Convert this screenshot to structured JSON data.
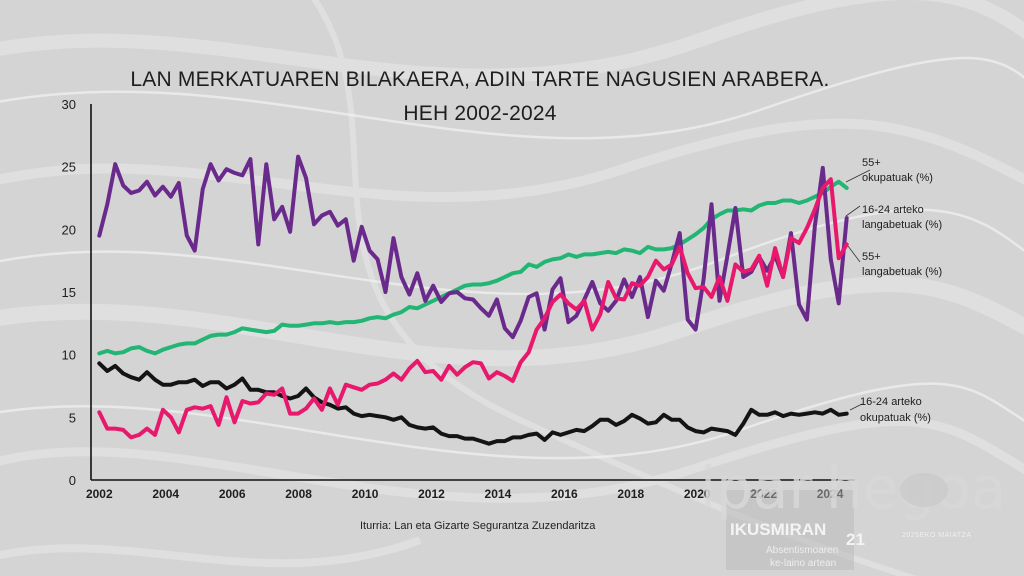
{
  "chart_data": {
    "type": "line",
    "title": [
      "LAN MERKATUAREN BILAKAERA, ADIN TARTE NAGUSIEN ARABERA.",
      "HEH 2002-2024"
    ],
    "xlim": [
      2001.75,
      2024.75
    ],
    "ylim": [
      0,
      30
    ],
    "y_ticks": [
      0,
      5,
      10,
      15,
      20,
      25,
      30
    ],
    "x_ticks": [
      2002,
      2004,
      2006,
      2008,
      2010,
      2012,
      2014,
      2016,
      2018,
      2020,
      2022,
      2024
    ],
    "grid": false,
    "legend": "right, labels at line ends",
    "series": [
      {
        "name": [
          "16-24 arteko",
          "okupatuak (%)"
        ],
        "color": "#141414",
        "values": [
          9.3,
          8.7,
          9.1,
          8.5,
          8.2,
          8.0,
          8.6,
          8.0,
          7.6,
          7.6,
          7.8,
          7.8,
          8.0,
          7.5,
          7.8,
          7.8,
          7.3,
          7.6,
          8.1,
          7.2,
          7.2,
          7.0,
          7.0,
          6.7,
          6.5,
          6.7,
          7.3,
          6.6,
          6.2,
          6.0,
          5.7,
          5.8,
          5.3,
          5.1,
          5.2,
          5.1,
          5.0,
          4.8,
          5.0,
          4.4,
          4.2,
          4.1,
          4.2,
          3.7,
          3.5,
          3.5,
          3.3,
          3.3,
          3.1,
          2.9,
          3.1,
          3.1,
          3.4,
          3.4,
          3.6,
          3.7,
          3.2,
          3.8,
          3.6,
          3.8,
          4.0,
          3.9,
          4.3,
          4.8,
          4.8,
          4.4,
          4.7,
          5.2,
          4.9,
          4.5,
          4.6,
          5.2,
          4.8,
          4.8,
          4.2,
          3.9,
          3.8,
          4.1,
          4.0,
          3.9,
          3.6,
          4.5,
          5.6,
          5.2,
          5.2,
          5.4,
          5.1,
          5.3,
          5.2,
          5.3,
          5.4,
          5.3,
          5.6,
          5.2,
          5.3
        ]
      },
      {
        "name": [
          "55+",
          "okupatuak (%)"
        ],
        "color": "#22b573",
        "values": [
          10.1,
          10.3,
          10.1,
          10.2,
          10.5,
          10.6,
          10.3,
          10.1,
          10.4,
          10.6,
          10.8,
          10.9,
          10.9,
          11.2,
          11.5,
          11.6,
          11.6,
          11.8,
          12.1,
          12.0,
          11.9,
          11.8,
          11.9,
          12.4,
          12.3,
          12.3,
          12.4,
          12.5,
          12.5,
          12.6,
          12.5,
          12.6,
          12.6,
          12.7,
          12.9,
          13.0,
          12.9,
          13.2,
          13.4,
          13.8,
          13.7,
          14.0,
          14.3,
          14.6,
          14.9,
          15.2,
          15.5,
          15.6,
          15.6,
          15.7,
          15.9,
          16.2,
          16.5,
          16.6,
          17.2,
          17.0,
          17.4,
          17.6,
          17.7,
          18.0,
          17.8,
          18.0,
          18.0,
          18.1,
          18.2,
          18.1,
          18.4,
          18.3,
          18.1,
          18.6,
          18.4,
          18.4,
          18.5,
          18.8,
          19.2,
          19.6,
          20.1,
          20.8,
          21.2,
          21.5,
          21.5,
          21.6,
          21.5,
          21.9,
          22.1,
          22.1,
          22.3,
          22.3,
          22.1,
          22.3,
          22.6,
          22.9,
          23.4,
          23.8,
          23.3
        ]
      },
      {
        "name": [
          "16-24 arteko",
          "langabetuak (%)"
        ],
        "color": "#6a2a8c",
        "values": [
          19.5,
          22.0,
          25.2,
          23.5,
          22.9,
          23.1,
          23.8,
          22.7,
          23.4,
          22.6,
          23.7,
          19.5,
          18.3,
          23.2,
          25.2,
          23.9,
          24.8,
          24.5,
          24.3,
          25.6,
          18.8,
          25.2,
          20.8,
          21.8,
          19.8,
          25.8,
          24.1,
          20.4,
          21.1,
          21.4,
          20.3,
          20.8,
          17.5,
          20.2,
          18.3,
          17.6,
          15.0,
          19.3,
          16.2,
          14.8,
          16.5,
          14.3,
          15.5,
          14.2,
          14.9,
          15.0,
          14.5,
          14.4,
          13.7,
          13.1,
          14.4,
          12.1,
          11.4,
          12.7,
          14.6,
          14.9,
          12.0,
          15.2,
          16.1,
          12.6,
          13.1,
          14.4,
          15.8,
          14.1,
          13.5,
          14.3,
          16.0,
          14.6,
          16.2,
          13.0,
          15.9,
          15.1,
          17.3,
          19.7,
          12.8,
          12.0,
          16.0,
          22.0,
          14.3,
          17.9,
          21.7,
          16.2,
          16.6,
          17.8,
          16.7,
          17.9,
          16.2,
          19.7,
          14.0,
          12.8,
          20.3,
          24.9,
          17.6,
          14.1,
          20.9
        ]
      },
      {
        "name": [
          "55+",
          "langabetuak (%)"
        ],
        "color": "#e8186d",
        "values": [
          5.4,
          4.1,
          4.1,
          4.0,
          3.4,
          3.6,
          4.1,
          3.6,
          5.6,
          5.0,
          3.8,
          5.6,
          5.8,
          5.7,
          5.9,
          4.4,
          6.6,
          4.6,
          6.3,
          6.1,
          6.2,
          6.9,
          6.8,
          7.3,
          5.3,
          5.3,
          5.7,
          6.5,
          5.6,
          7.3,
          6.0,
          7.6,
          7.4,
          7.2,
          7.6,
          7.7,
          8.0,
          8.5,
          8.0,
          8.9,
          9.5,
          8.6,
          8.7,
          8.0,
          9.1,
          8.4,
          9.0,
          9.4,
          9.3,
          8.1,
          8.6,
          8.3,
          7.9,
          9.4,
          10.2,
          12.0,
          12.9,
          14.2,
          14.8,
          14.1,
          13.6,
          14.3,
          12.0,
          13.2,
          15.8,
          14.5,
          14.4,
          15.7,
          15.5,
          16.2,
          17.5,
          16.8,
          17.2,
          18.6,
          16.5,
          15.3,
          15.4,
          14.6,
          16.2,
          14.3,
          17.2,
          16.6,
          16.8,
          17.9,
          15.5,
          18.5,
          16.2,
          19.3,
          18.9,
          20.1,
          21.6,
          23.3,
          24.0,
          17.7,
          18.8
        ]
      }
    ]
  },
  "source": "Iturria: Lan eta Gizarte Segurantza Zuzendaritza",
  "branding": {
    "logo_word_1": "ipar",
    "logo_word_2": "hegoa",
    "issue": "IKUSMIRAN",
    "issue_number": "21",
    "subtitle_1": "Absentismoaren",
    "subtitle_2": "ke-laino artean",
    "date": "2025EKO MAIATZA"
  }
}
